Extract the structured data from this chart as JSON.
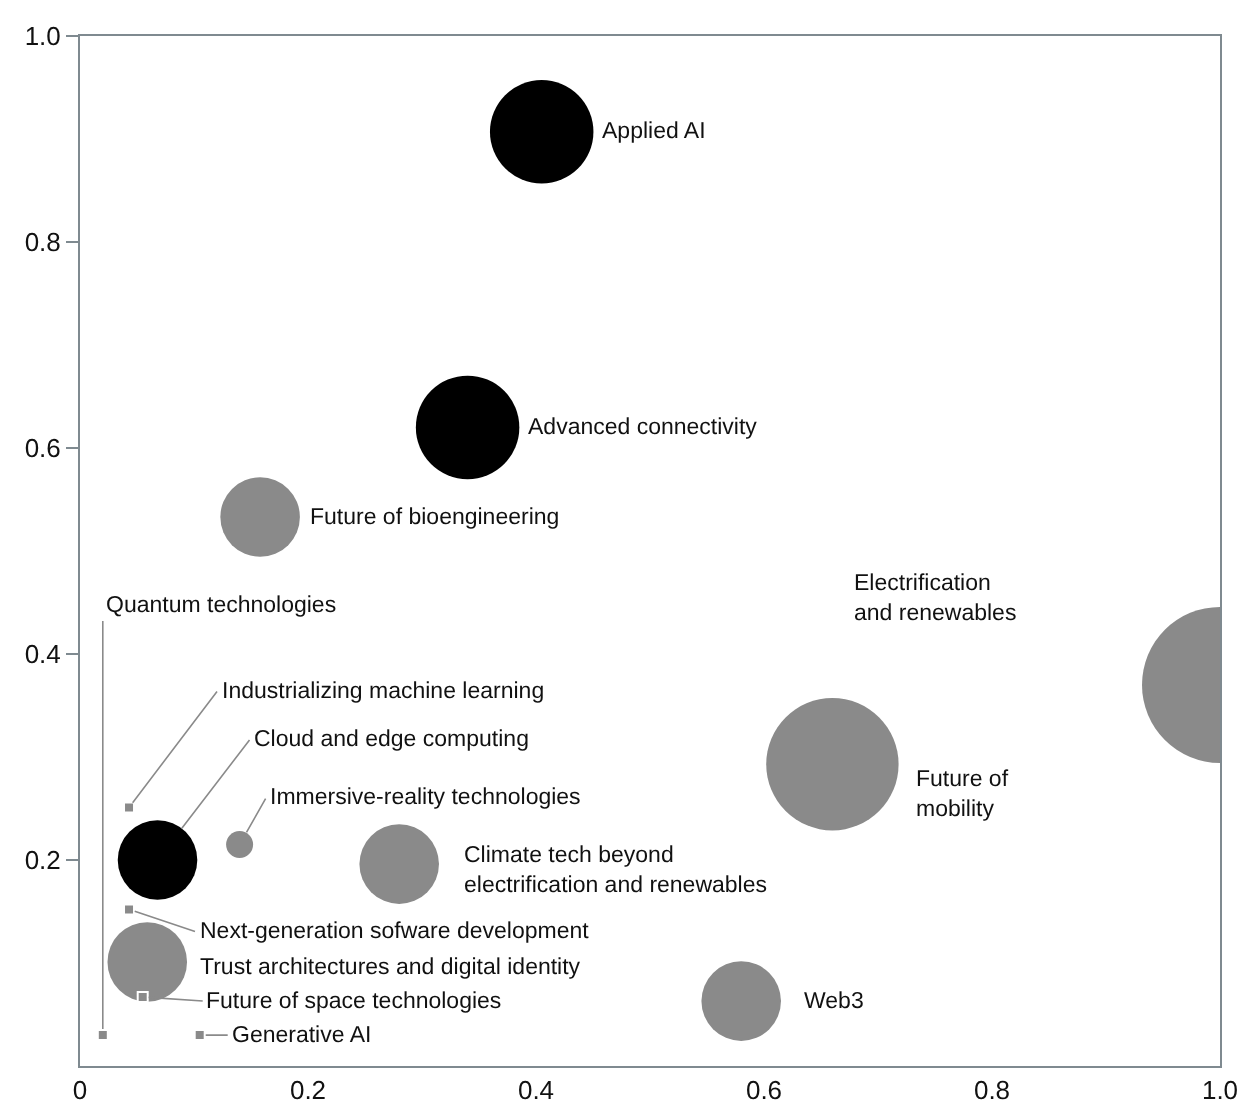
{
  "chart_data": {
    "type": "bubble",
    "series": [
      {
        "x": [
          0.405,
          0.34,
          0.158,
          1.0,
          0.66,
          0.58,
          0.28,
          0.14,
          0.068,
          0.059
        ],
        "values": [
          0.907,
          0.62,
          0.533,
          0.37,
          0.293,
          0.063,
          0.196,
          0.215,
          0.2,
          0.101
        ],
        "sizes": [
          0.44,
          0.44,
          0.26,
          1,
          0.72,
          0.26,
          0.26,
          0.03,
          0.26,
          0.26
        ],
        "colors": [
          "#000000",
          "#000000",
          "#8a8a8a",
          "#8a8a8a",
          "#8a8a8a",
          "#8a8a8a",
          "#8a8a8a",
          "#8a8a8a",
          "#000000",
          "#8a8a8a"
        ]
      },
      {
        "type": "scatter",
        "marker": "square",
        "color": "#8a8a8a",
        "x": [
          0.043,
          0.043,
          0.055,
          0.02,
          0.105
        ],
        "values": [
          0.251,
          0.152,
          0.067,
          0.03,
          0.03
        ]
      }
    ],
    "xlim": [
      0,
      1
    ],
    "ylim": [
      0,
      1
    ],
    "xticks": [
      0,
      0.2,
      0.4,
      0.6,
      0.8,
      {
        "value": 1,
        "label": "1.0"
      }
    ],
    "yticks": [
      0.2,
      0.4,
      0.6,
      0.8,
      {
        "value": 1,
        "label": "1.0"
      }
    ],
    "grid": false,
    "annotations": [
      {
        "text": "Applied AI",
        "x": 0.405,
        "y": 0.907
      },
      {
        "text": "Advanced connectivity",
        "x": 0.34,
        "y": 0.62
      },
      {
        "text": "Future of bioengineering",
        "x": 0.158,
        "y": 0.533
      },
      "Electrification\nand renewables",
      "Future of\nmobility",
      {
        "text": "Web3",
        "x": 0.58,
        "y": 0.063
      },
      {
        "text": "Climate tech beyond\nelectrification and renewables",
        "x": 0.28,
        "y": 0.196
      },
      {
        "text": "Immersive-reality technologies",
        "x": 0.14,
        "y": 0.215
      },
      {
        "text": "Industrializing machine learning",
        "x": 0.043,
        "y": 0.251
      },
      {
        "text": "Cloud and edge computing",
        "x": 0.068,
        "y": 0.2
      },
      {
        "text": "Next-generation sofware development",
        "x": 0.043,
        "y": 0.152
      },
      {
        "text": "Trust architectures and digital identity",
        "x": 0.059,
        "y": 0.101
      },
      {
        "text": "Future of space technologies",
        "x": 0.055,
        "y": 0.067
      },
      {
        "text": "Quantum technologies",
        "x": 0.02,
        "y": 0.03
      },
      {
        "text": "Generative AI",
        "x": 0.105,
        "y": 0.03
      }
    ]
  }
}
